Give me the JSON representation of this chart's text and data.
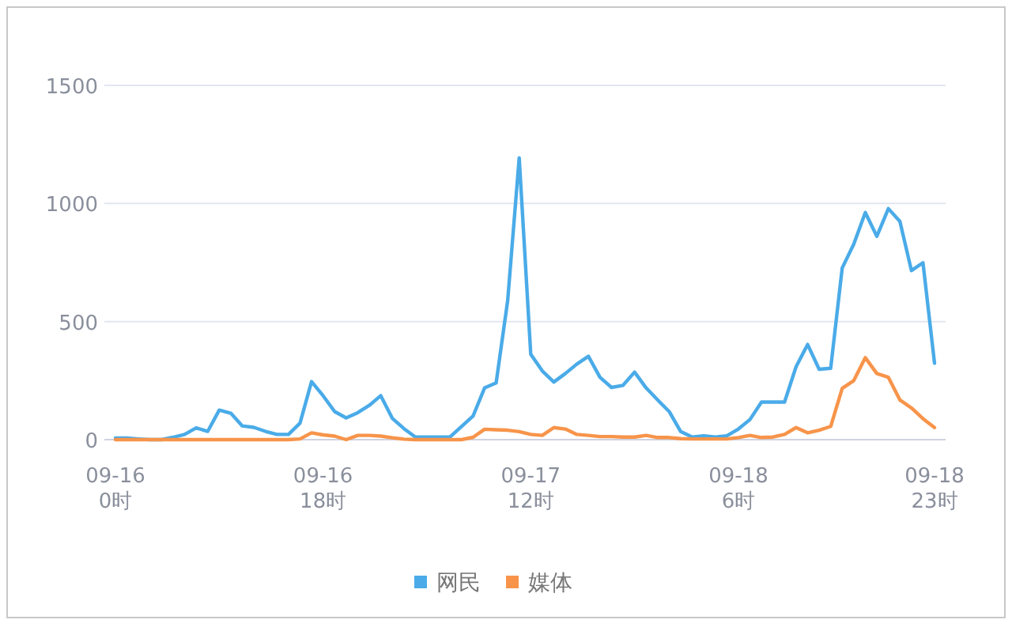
{
  "chart_data": {
    "type": "line",
    "categories": [
      "09-16\n0时",
      null,
      null,
      null,
      null,
      null,
      null,
      null,
      null,
      null,
      null,
      null,
      null,
      null,
      null,
      null,
      null,
      null,
      "09-16\n18时",
      null,
      null,
      null,
      null,
      null,
      null,
      null,
      null,
      null,
      null,
      null,
      null,
      null,
      null,
      null,
      null,
      null,
      "09-17\n12时",
      null,
      null,
      null,
      null,
      null,
      null,
      null,
      null,
      null,
      null,
      null,
      null,
      null,
      null,
      null,
      null,
      null,
      "09-18\n6时",
      null,
      null,
      null,
      null,
      null,
      null,
      null,
      null,
      null,
      null,
      null,
      null,
      null,
      null,
      null,
      null,
      "09-18\n23时"
    ],
    "series": [
      {
        "name": "网民",
        "color": "#4aabe8",
        "values": [
          7,
          7,
          3,
          0,
          0,
          10,
          22,
          50,
          35,
          125,
          112,
          58,
          52,
          35,
          22,
          22,
          70,
          246,
          186,
          119,
          92,
          114,
          145,
          186,
          90,
          47,
          11,
          11,
          11,
          11,
          56,
          100,
          219,
          240,
          589,
          1193,
          362,
          291,
          244,
          280,
          320,
          353,
          264,
          221,
          230,
          286,
          219,
          168,
          119,
          34,
          11,
          16,
          11,
          16,
          45,
          85,
          159,
          159,
          159,
          309,
          403,
          298,
          302,
          727,
          828,
          962,
          861,
          978,
          924,
          716,
          749,
          324
        ]
      },
      {
        "name": "媒体",
        "color": "#f7944a",
        "values": [
          0,
          0,
          0,
          0,
          0,
          0,
          0,
          0,
          0,
          0,
          0,
          0,
          0,
          0,
          0,
          0,
          3,
          29,
          20,
          15,
          0,
          18,
          18,
          15,
          8,
          2,
          0,
          0,
          0,
          0,
          0,
          10,
          44,
          42,
          40,
          34,
          22,
          18,
          51,
          45,
          22,
          18,
          13,
          13,
          11,
          11,
          18,
          9,
          9,
          4,
          3,
          3,
          3,
          3,
          9,
          18,
          9,
          11,
          22,
          51,
          29,
          40,
          56,
          217,
          250,
          347,
          280,
          264,
          168,
          134,
          89,
          51
        ]
      }
    ],
    "ylim": [
      0,
      1500
    ],
    "yticks": [
      0,
      500,
      1000,
      1500
    ],
    "grid": "y",
    "legend": "bottom"
  }
}
